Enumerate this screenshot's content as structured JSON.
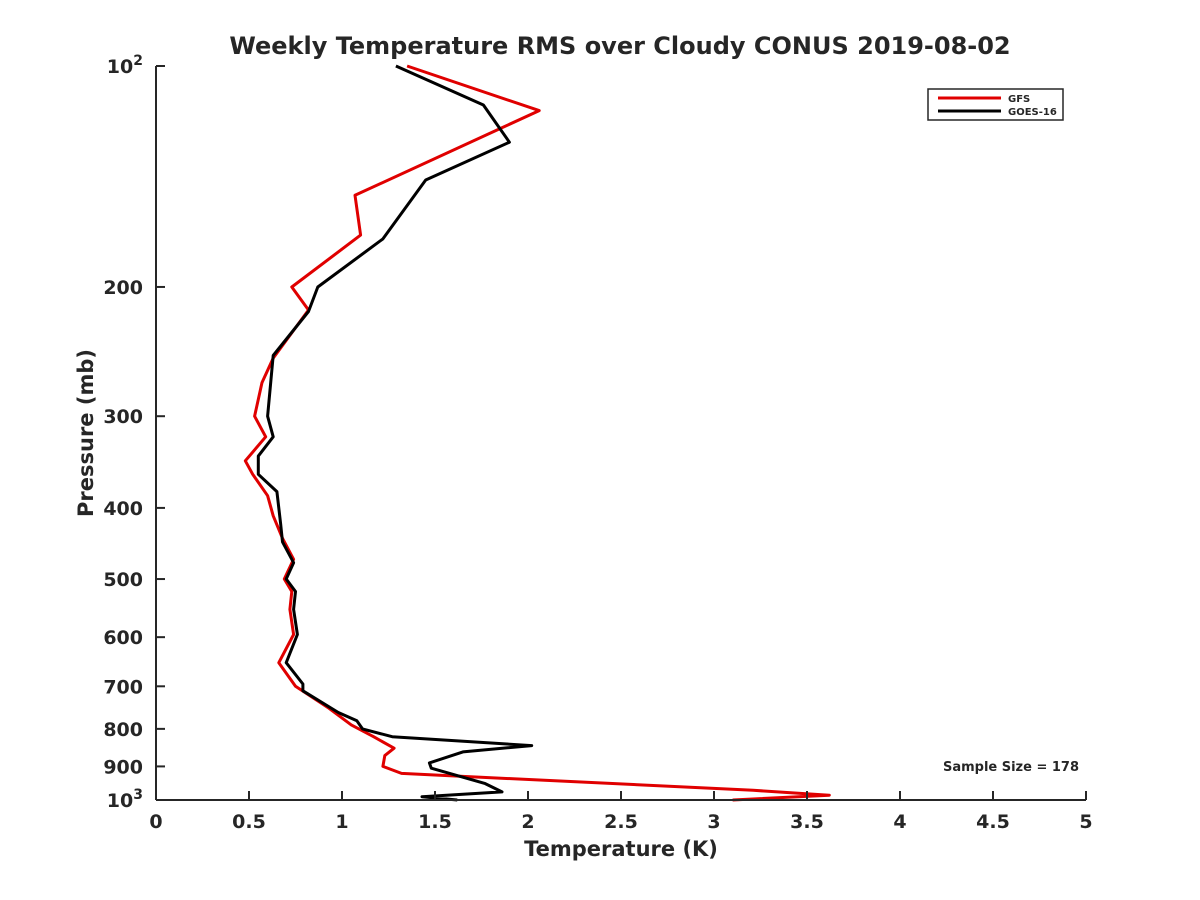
{
  "chart_data": {
    "type": "line",
    "title": "Weekly Temperature RMS over Cloudy CONUS 2019-08-02",
    "xlabel": "Temperature (K)",
    "ylabel": "Pressure (mb)",
    "xlim": [
      0,
      5
    ],
    "ylim": [
      1000,
      100
    ],
    "y_scale": "log",
    "y_reversed": true,
    "grid": false,
    "legend_position": "top-right",
    "x_ticks": [
      {
        "value": 0,
        "label": "0"
      },
      {
        "value": 0.5,
        "label": "0.5"
      },
      {
        "value": 1,
        "label": "1"
      },
      {
        "value": 1.5,
        "label": "1.5"
      },
      {
        "value": 2,
        "label": "2"
      },
      {
        "value": 2.5,
        "label": "2.5"
      },
      {
        "value": 3,
        "label": "3"
      },
      {
        "value": 3.5,
        "label": "3.5"
      },
      {
        "value": 4,
        "label": "4"
      },
      {
        "value": 4.5,
        "label": "4.5"
      },
      {
        "value": 5,
        "label": "5"
      }
    ],
    "y_ticks": [
      {
        "value": 100,
        "label": "10",
        "sup": "2"
      },
      {
        "value": 200,
        "label": "200",
        "sup": ""
      },
      {
        "value": 300,
        "label": "300",
        "sup": ""
      },
      {
        "value": 400,
        "label": "400",
        "sup": ""
      },
      {
        "value": 500,
        "label": "500",
        "sup": ""
      },
      {
        "value": 600,
        "label": "600",
        "sup": ""
      },
      {
        "value": 700,
        "label": "700",
        "sup": ""
      },
      {
        "value": 800,
        "label": "800",
        "sup": ""
      },
      {
        "value": 900,
        "label": "900",
        "sup": ""
      },
      {
        "value": 1000,
        "label": "10",
        "sup": "3"
      }
    ],
    "annotation": "Sample Size = 178",
    "series": [
      {
        "name": "GFS",
        "color": "#e00000",
        "points": [
          [
            1.35,
            100
          ],
          [
            2.06,
            115
          ],
          [
            1.07,
            150
          ],
          [
            1.1,
            170
          ],
          [
            0.73,
            200
          ],
          [
            0.82,
            215
          ],
          [
            0.63,
            250
          ],
          [
            0.57,
            270
          ],
          [
            0.53,
            300
          ],
          [
            0.59,
            320
          ],
          [
            0.48,
            345
          ],
          [
            0.52,
            360
          ],
          [
            0.6,
            385
          ],
          [
            0.63,
            410
          ],
          [
            0.68,
            440
          ],
          [
            0.74,
            470
          ],
          [
            0.69,
            500
          ],
          [
            0.73,
            520
          ],
          [
            0.72,
            550
          ],
          [
            0.74,
            595
          ],
          [
            0.66,
            650
          ],
          [
            0.75,
            700
          ],
          [
            0.93,
            750
          ],
          [
            1.05,
            790
          ],
          [
            1.17,
            820
          ],
          [
            1.28,
            850
          ],
          [
            1.23,
            870
          ],
          [
            1.22,
            900
          ],
          [
            1.32,
            920
          ],
          [
            3.21,
            970
          ],
          [
            3.62,
            985
          ],
          [
            3.1,
            1000
          ]
        ]
      },
      {
        "name": "GOES-16",
        "color": "#000000",
        "points": [
          [
            1.29,
            100
          ],
          [
            1.76,
            113
          ],
          [
            1.9,
            127
          ],
          [
            1.45,
            143
          ],
          [
            1.22,
            172
          ],
          [
            0.87,
            200
          ],
          [
            0.82,
            216
          ],
          [
            0.63,
            248
          ],
          [
            0.6,
            300
          ],
          [
            0.63,
            320
          ],
          [
            0.55,
            340
          ],
          [
            0.55,
            360
          ],
          [
            0.65,
            380
          ],
          [
            0.67,
            420
          ],
          [
            0.68,
            445
          ],
          [
            0.74,
            475
          ],
          [
            0.7,
            500
          ],
          [
            0.75,
            520
          ],
          [
            0.74,
            550
          ],
          [
            0.76,
            595
          ],
          [
            0.7,
            650
          ],
          [
            0.79,
            695
          ],
          [
            0.79,
            710
          ],
          [
            0.98,
            760
          ],
          [
            1.08,
            780
          ],
          [
            1.11,
            800
          ],
          [
            1.27,
            820
          ],
          [
            2.02,
            843
          ],
          [
            1.65,
            860
          ],
          [
            1.47,
            890
          ],
          [
            1.48,
            905
          ],
          [
            1.77,
            950
          ],
          [
            1.86,
            975
          ],
          [
            1.43,
            990
          ],
          [
            1.62,
            1000
          ]
        ]
      }
    ]
  }
}
